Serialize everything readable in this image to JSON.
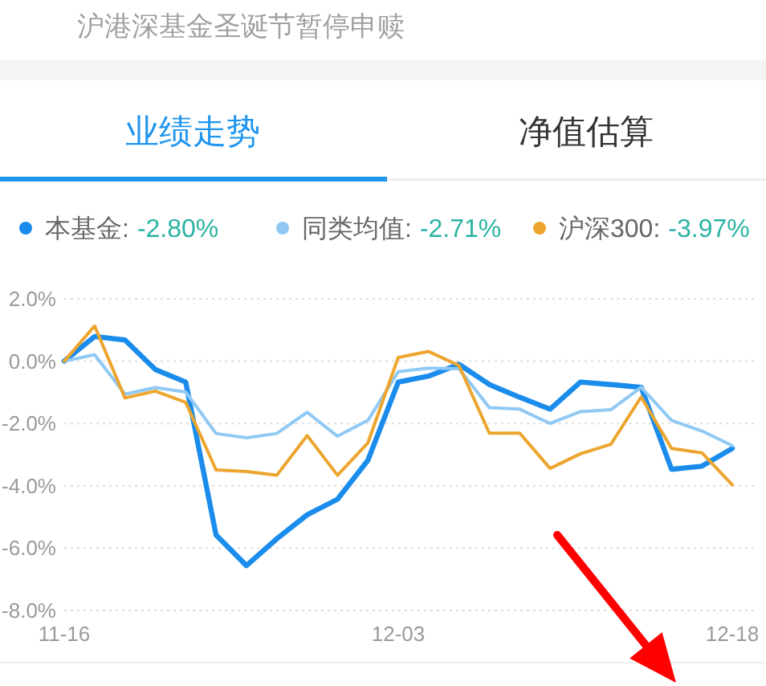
{
  "chart_data": {
    "type": "line",
    "categories": [
      "11-16",
      null,
      null,
      null,
      null,
      null,
      null,
      null,
      null,
      null,
      null,
      "12-03",
      null,
      null,
      null,
      null,
      null,
      null,
      null,
      null,
      null,
      null,
      "12-18"
    ],
    "series": [
      {
        "name": "本基金:",
        "color": "#1a8cec",
        "values": [
          0,
          0.79,
          0.68,
          -0.27,
          -0.67,
          -5.58,
          -6.56,
          -5.7,
          -4.93,
          -4.43,
          -3.18,
          -0.67,
          -0.48,
          -0.1,
          -0.75,
          -1.16,
          -1.54,
          -0.67,
          -0.75,
          -0.84,
          -3.47,
          -3.37,
          -2.8
        ]
      },
      {
        "name": "同类均值:",
        "color": "#90c9f4",
        "values": [
          0,
          0.21,
          -1.06,
          -0.85,
          -0.99,
          -2.32,
          -2.46,
          -2.32,
          -1.64,
          -2.41,
          -1.9,
          -0.34,
          -0.22,
          -0.24,
          -1.49,
          -1.54,
          -2.0,
          -1.62,
          -1.56,
          -0.84,
          -1.9,
          -2.24,
          -2.71
        ]
      },
      {
        "name": "沪深300:",
        "color": "#eca52e",
        "values": [
          0,
          1.13,
          -1.18,
          -0.96,
          -1.32,
          -3.49,
          -3.54,
          -3.66,
          -2.39,
          -3.66,
          -2.62,
          0.12,
          0.31,
          -0.14,
          -2.31,
          -2.31,
          -3.44,
          -2.97,
          -2.67,
          -1.15,
          -2.8,
          -2.94,
          -3.97
        ]
      }
    ],
    "ylim": [
      -8,
      2
    ],
    "yticks": [
      {
        "value": -8,
        "label": "-8.0%"
      },
      {
        "value": -6,
        "label": "-6.0%"
      },
      {
        "value": -4,
        "label": "-4.0%"
      },
      {
        "value": -2,
        "label": "-2.0%"
      },
      {
        "value": 0,
        "label": "0.0%"
      },
      {
        "value": 2,
        "label": "2.0%"
      }
    ],
    "grid": "y",
    "legend": "top",
    "annotations": [
      "沪港深基金圣诞节暂停申赎",
      "业绩走势",
      "净值估算",
      "-2.80%",
      "-2.71%",
      "-3.97%"
    ]
  }
}
